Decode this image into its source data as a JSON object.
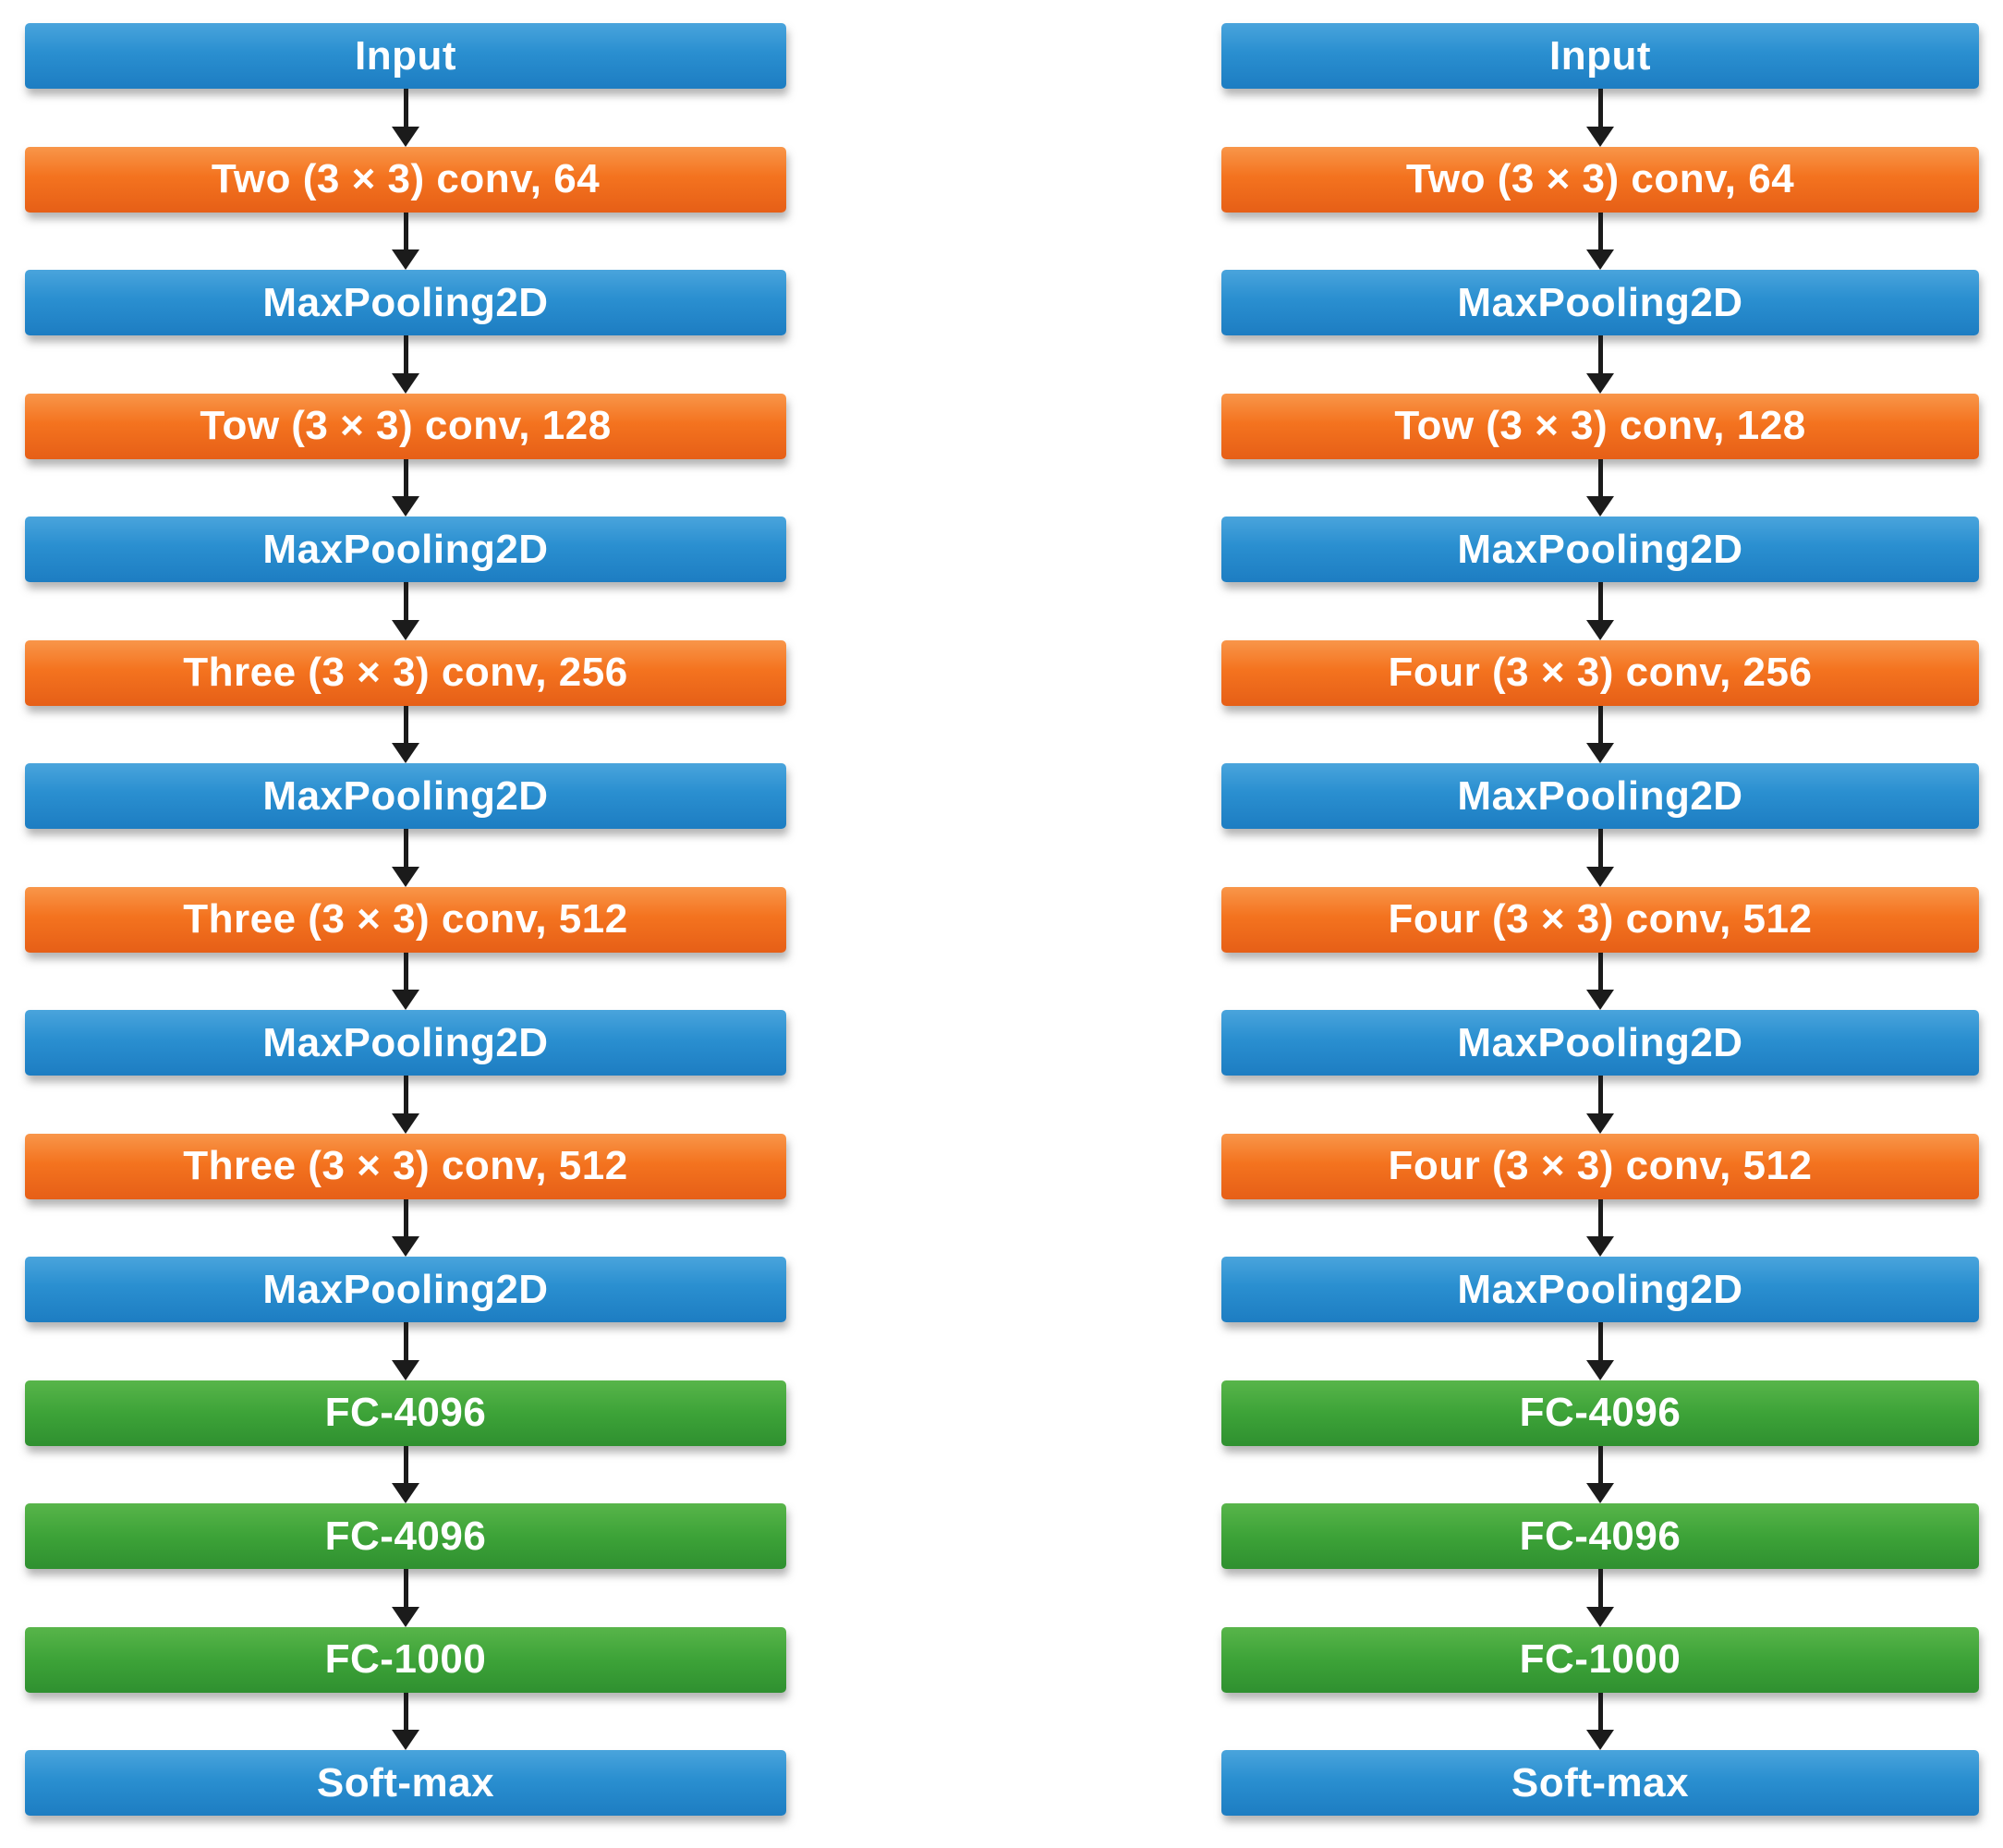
{
  "figure": {
    "colors": {
      "blue_box": "#2a8fd0",
      "orange_box": "#f4731f",
      "green_box": "#3da338",
      "arrow": "#1b1b1b",
      "label_text": "#ffffff",
      "background": "#ffffff"
    },
    "columns": [
      {
        "name": "left",
        "nodes": [
          {
            "label": "Input",
            "type": "blue"
          },
          {
            "label": "Two (3 × 3) conv, 64",
            "type": "orange"
          },
          {
            "label": "MaxPooling2D",
            "type": "blue"
          },
          {
            "label": "Tow (3 × 3) conv, 128",
            "type": "orange"
          },
          {
            "label": "MaxPooling2D",
            "type": "blue"
          },
          {
            "label": "Three (3 × 3) conv, 256",
            "type": "orange"
          },
          {
            "label": "MaxPooling2D",
            "type": "blue"
          },
          {
            "label": "Three (3 × 3) conv, 512",
            "type": "orange"
          },
          {
            "label": "MaxPooling2D",
            "type": "blue"
          },
          {
            "label": "Three (3 × 3) conv, 512",
            "type": "orange"
          },
          {
            "label": "MaxPooling2D",
            "type": "blue"
          },
          {
            "label": "FC-4096",
            "type": "green"
          },
          {
            "label": "FC-4096",
            "type": "green"
          },
          {
            "label": "FC-1000",
            "type": "green"
          },
          {
            "label": "Soft-max",
            "type": "blue"
          }
        ]
      },
      {
        "name": "right",
        "nodes": [
          {
            "label": "Input",
            "type": "blue"
          },
          {
            "label": "Two (3 × 3) conv, 64",
            "type": "orange"
          },
          {
            "label": "MaxPooling2D",
            "type": "blue"
          },
          {
            "label": "Tow (3 × 3) conv, 128",
            "type": "orange"
          },
          {
            "label": "MaxPooling2D",
            "type": "blue"
          },
          {
            "label": "Four (3 × 3) conv, 256",
            "type": "orange"
          },
          {
            "label": "MaxPooling2D",
            "type": "blue"
          },
          {
            "label": "Four (3 × 3) conv, 512",
            "type": "orange"
          },
          {
            "label": "MaxPooling2D",
            "type": "blue"
          },
          {
            "label": "Four (3 × 3) conv, 512",
            "type": "orange"
          },
          {
            "label": "MaxPooling2D",
            "type": "blue"
          },
          {
            "label": "FC-4096",
            "type": "green"
          },
          {
            "label": "FC-4096",
            "type": "green"
          },
          {
            "label": "FC-1000",
            "type": "green"
          },
          {
            "label": "Soft-max",
            "type": "blue"
          }
        ]
      }
    ]
  }
}
